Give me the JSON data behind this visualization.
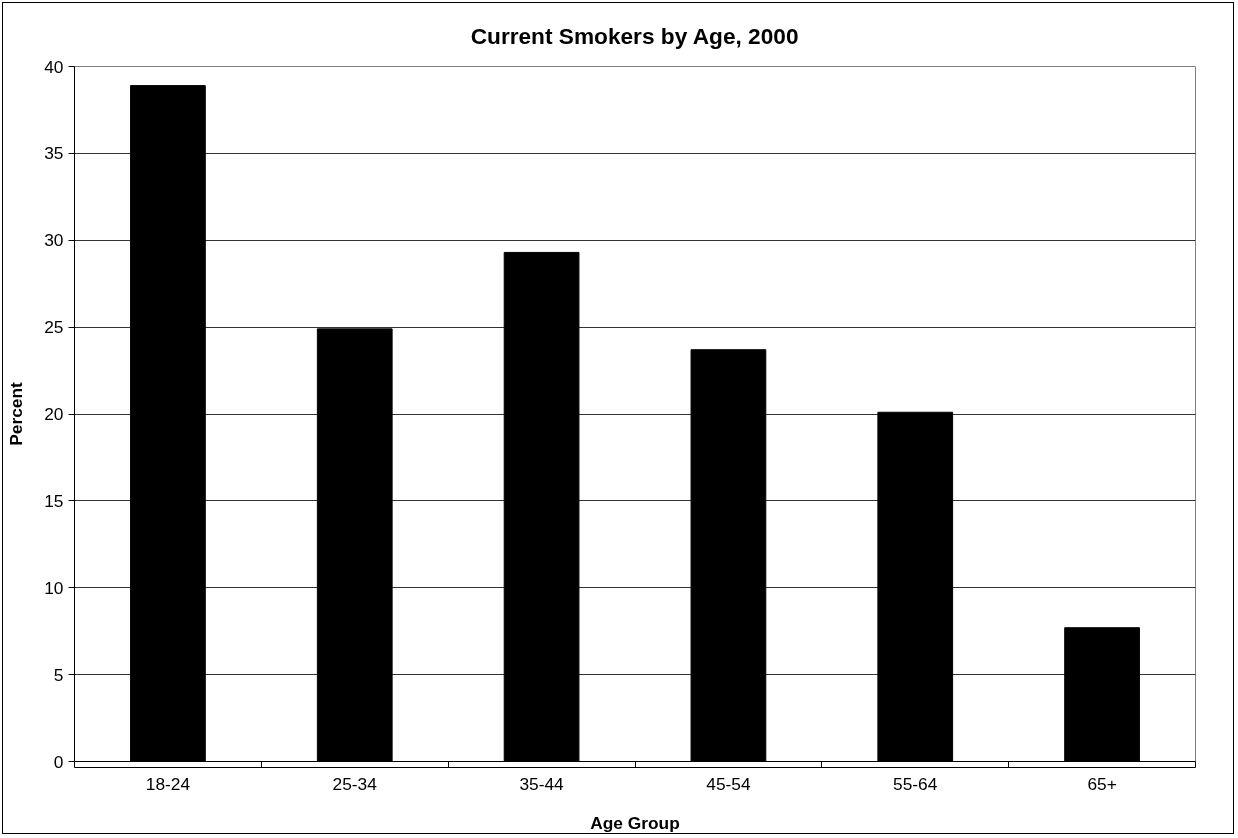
{
  "chart_data": {
    "type": "bar",
    "title": "Current Smokers by Age, 2000",
    "xlabel": "Age Group",
    "ylabel": "Percent",
    "categories": [
      "18-24",
      "25-34",
      "35-44",
      "45-54",
      "55-64",
      "65+"
    ],
    "values": [
      38.9,
      24.9,
      29.3,
      23.7,
      20.1,
      7.7
    ],
    "color": "#000000",
    "ylim": [
      0,
      40
    ],
    "yticks": [
      0,
      5,
      10,
      15,
      20,
      25,
      30,
      35,
      40
    ],
    "grid": "y"
  }
}
